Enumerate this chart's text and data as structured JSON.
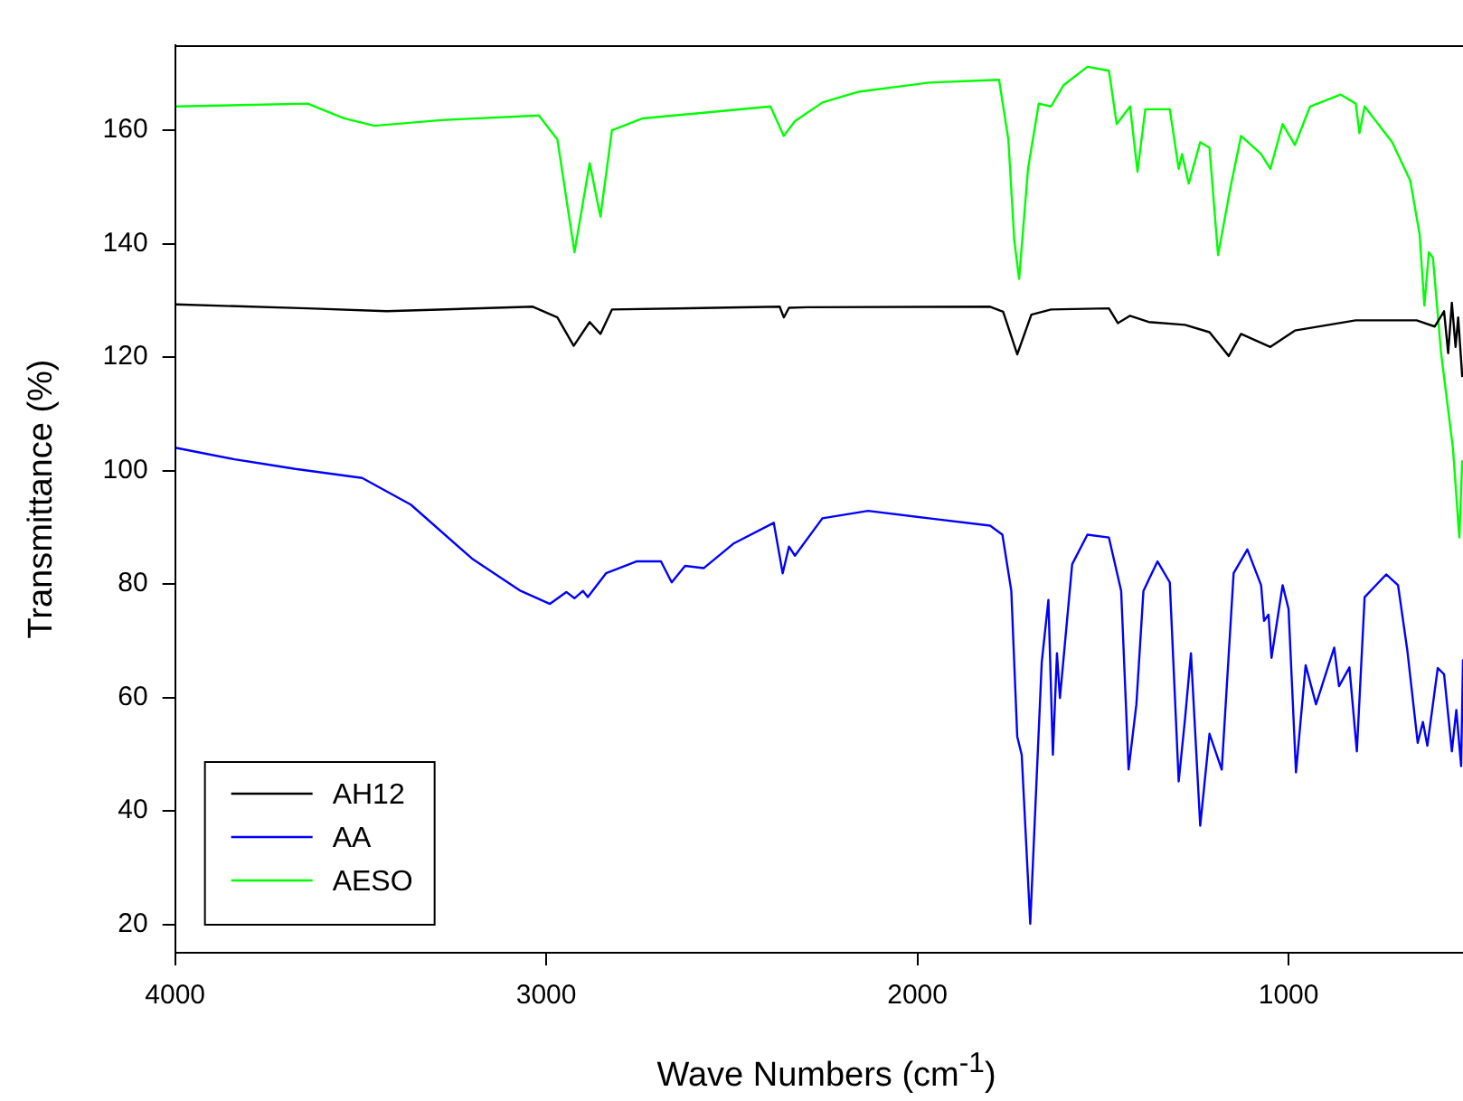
{
  "chart_data": {
    "type": "line",
    "xlabel": "Wave Numbers (cm$^{-1}$)",
    "ylabel": "Transmittance (%)",
    "xlim": [
      4000,
      530
    ],
    "xticks": [
      4000,
      3000,
      2000,
      1000
    ],
    "ylim": [
      15,
      175
    ],
    "yticks": [
      20,
      40,
      60,
      80,
      100,
      120,
      140,
      160
    ],
    "grid": false,
    "legend": "bottom left",
    "marker": "none",
    "line_style": "solid",
    "series": [
      {
        "name": "AH12",
        "color": "#000000",
        "x": [
          3997,
          3643,
          3430,
          3036,
          2970,
          2926,
          2883,
          2854,
          2823,
          2371,
          2360,
          2346,
          2297,
          1804,
          1769,
          1731,
          1693,
          1640,
          1484,
          1460,
          1427,
          1377,
          1279,
          1213,
          1161,
          1128,
          1049,
          983,
          819,
          655,
          606,
          581,
          570,
          560,
          550,
          543,
          532
        ],
        "values": [
          129.3,
          128.6,
          128.1,
          128.9,
          127,
          122,
          126.2,
          124.1,
          128.4,
          128.9,
          127,
          128.7,
          128.8,
          128.9,
          128,
          120.5,
          127.5,
          128.4,
          128.6,
          126,
          127.3,
          126.2,
          125.7,
          124.4,
          120.2,
          124.1,
          121.8,
          124.7,
          126.5,
          126.5,
          125.4,
          128.1,
          120.7,
          129.6,
          121.8,
          127,
          116.5
        ]
      },
      {
        "name": "AA",
        "color": "#0000ff",
        "x": [
          3997,
          3840,
          3676,
          3496,
          3365,
          3200,
          3069,
          2990,
          2946,
          2924,
          2901,
          2888,
          2839,
          2757,
          2691,
          2662,
          2626,
          2576,
          2494,
          2387,
          2363,
          2346,
          2330,
          2256,
          2133,
          1969,
          1804,
          1771,
          1747,
          1731,
          1719,
          1696,
          1665,
          1647,
          1635,
          1624,
          1616,
          1583,
          1542,
          1484,
          1451,
          1431,
          1410,
          1391,
          1353,
          1320,
          1296,
          1279,
          1263,
          1238,
          1213,
          1180,
          1148,
          1111,
          1074,
          1066,
          1054,
          1046,
          1016,
          1000,
          980,
          954,
          926,
          877,
          864,
          836,
          816,
          795,
          737,
          705,
          680,
          652,
          638,
          626,
          598,
          581,
          560,
          548,
          535,
          530
        ],
        "values": [
          104,
          102,
          100.3,
          98.7,
          94,
          84.5,
          78.8,
          76.5,
          78.6,
          77.5,
          78.8,
          77.7,
          81.9,
          84,
          84,
          80.3,
          83.2,
          82.8,
          87.2,
          90.8,
          81.9,
          86.6,
          85,
          91.6,
          92.9,
          91.6,
          90.3,
          88.7,
          78.8,
          53.1,
          49.9,
          20.1,
          66.2,
          77.2,
          49.9,
          67.8,
          59.9,
          83.5,
          88.7,
          88.2,
          78.8,
          47.3,
          58.8,
          78.8,
          84,
          80.3,
          45.2,
          56.2,
          67.8,
          37.4,
          53.6,
          47.3,
          81.9,
          86.1,
          79.8,
          73.5,
          74.6,
          67,
          79.8,
          75.6,
          46.8,
          65.7,
          58.8,
          68.8,
          62,
          65.3,
          50.5,
          77.7,
          81.7,
          79.8,
          68.3,
          52,
          55.7,
          51.5,
          65.2,
          64.1,
          50.5,
          57.8,
          47.9,
          66.7
        ]
      },
      {
        "name": "AESO",
        "color": "#00ff00",
        "x": [
          3997,
          3643,
          3545,
          3463,
          3282,
          3020,
          2970,
          2924,
          2883,
          2854,
          2823,
          2740,
          2396,
          2360,
          2330,
          2256,
          2158,
          1969,
          1780,
          1755,
          1739,
          1726,
          1702,
          1673,
          1640,
          1607,
          1542,
          1484,
          1463,
          1427,
          1407,
          1386,
          1320,
          1296,
          1287,
          1269,
          1238,
          1213,
          1190,
          1156,
          1128,
          1074,
          1049,
          1016,
          983,
          942,
          860,
          819,
          809,
          795,
          721,
          672,
          647,
          634,
          622,
          611,
          589,
          557,
          540,
          532
        ],
        "values": [
          164.2,
          164.7,
          162.1,
          160.8,
          161.8,
          162.6,
          158.4,
          138.5,
          154.2,
          144.8,
          160,
          162.1,
          164.2,
          159,
          161.6,
          164.9,
          166.8,
          168.4,
          168.9,
          158.4,
          140.6,
          133.8,
          153.2,
          164.7,
          164.2,
          167.9,
          171.2,
          170.5,
          161.1,
          164.2,
          152.7,
          163.7,
          163.7,
          153.2,
          155.8,
          150.6,
          157.9,
          156.9,
          138,
          150.1,
          159,
          155.8,
          153.2,
          161.1,
          157.4,
          164.2,
          166.3,
          164.7,
          159.5,
          164.2,
          157.9,
          151.1,
          141.7,
          129.1,
          138.5,
          137.5,
          120.7,
          103.9,
          88.2,
          101.8
        ]
      }
    ]
  }
}
